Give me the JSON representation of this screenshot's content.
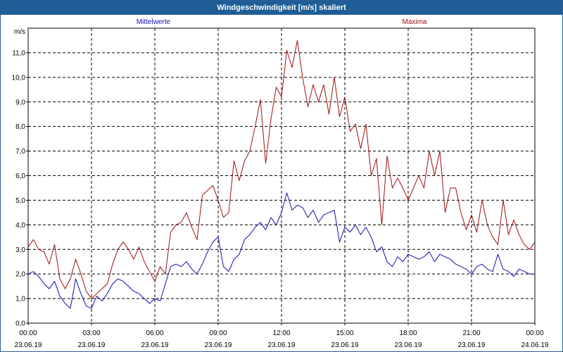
{
  "window": {
    "title": "Windgeschwindigkeit [m/s] skaliert"
  },
  "chart_data": {
    "type": "line",
    "title": "Windgeschwindigkeit [m/s] skaliert",
    "ylabel": "m/s",
    "xlabel": "",
    "ylim": [
      0,
      12
    ],
    "yticks": [
      "0,0",
      "1,0",
      "2,0",
      "3,0",
      "4,0",
      "5,0",
      "6,0",
      "7,0",
      "8,0",
      "9,0",
      "10,0",
      "11,0"
    ],
    "xlim_hours": [
      0,
      24
    ],
    "xticks": [
      {
        "time": "00:00",
        "date": "23.06.19"
      },
      {
        "time": "03:00",
        "date": "23.06.19"
      },
      {
        "time": "06:00",
        "date": "23.06.19"
      },
      {
        "time": "09:00",
        "date": "23.06.19"
      },
      {
        "time": "12:00",
        "date": "23.06.19"
      },
      {
        "time": "15:00",
        "date": "23.06.19"
      },
      {
        "time": "18:00",
        "date": "23.06.19"
      },
      {
        "time": "21:00",
        "date": "23.06.19"
      },
      {
        "time": "00:00",
        "date": "24.06.19"
      }
    ],
    "grid": true,
    "colors": {
      "mittelwerte": "#1010b0",
      "maxima": "#a01010"
    },
    "series": [
      {
        "name": "Mittelwerte",
        "color": "#1010b0",
        "x": [
          0,
          0.25,
          0.5,
          0.75,
          1,
          1.25,
          1.5,
          1.75,
          2,
          2.25,
          2.5,
          2.75,
          3,
          3.25,
          3.5,
          3.75,
          4,
          4.25,
          4.5,
          4.75,
          5,
          5.25,
          5.5,
          5.75,
          6,
          6.25,
          6.5,
          6.75,
          7,
          7.25,
          7.5,
          7.75,
          8,
          8.25,
          8.5,
          8.75,
          9,
          9.25,
          9.5,
          9.75,
          10,
          10.25,
          10.5,
          10.75,
          11,
          11.25,
          11.5,
          11.75,
          12,
          12.25,
          12.5,
          12.75,
          13,
          13.25,
          13.5,
          13.75,
          14,
          14.25,
          14.5,
          14.75,
          15,
          15.25,
          15.5,
          15.75,
          16,
          16.25,
          16.5,
          16.75,
          17,
          17.25,
          17.5,
          17.75,
          18,
          18.25,
          18.5,
          18.75,
          19,
          19.25,
          19.5,
          19.75,
          20,
          20.25,
          20.5,
          20.75,
          21,
          21.25,
          21.5,
          21.75,
          22,
          22.25,
          22.5,
          22.75,
          23,
          23.25,
          23.5,
          23.75,
          24
        ],
        "values": [
          2.0,
          2.1,
          1.9,
          1.6,
          1.4,
          1.7,
          1.1,
          0.8,
          0.6,
          1.8,
          1.2,
          0.7,
          0.6,
          1.1,
          0.9,
          1.2,
          1.6,
          1.8,
          1.7,
          1.5,
          1.3,
          1.2,
          1.0,
          0.8,
          1.0,
          0.9,
          1.6,
          2.3,
          2.4,
          2.3,
          2.5,
          2.2,
          2.0,
          2.4,
          2.9,
          3.3,
          3.5,
          2.3,
          2.1,
          2.6,
          2.8,
          3.4,
          3.6,
          3.9,
          4.1,
          3.8,
          4.3,
          4.0,
          4.5,
          5.3,
          4.6,
          4.8,
          4.7,
          4.3,
          4.6,
          4.1,
          4.4,
          4.5,
          4.6,
          3.3,
          3.9,
          3.7,
          4.0,
          3.6,
          3.9,
          3.5,
          2.9,
          3.1,
          2.5,
          2.3,
          2.7,
          2.5,
          2.8,
          2.7,
          2.6,
          2.7,
          2.9,
          2.5,
          2.8,
          2.7,
          2.6,
          2.4,
          2.3,
          2.2,
          2.0,
          2.3,
          2.4,
          2.2,
          2.1,
          2.8,
          2.2,
          2.1,
          1.9,
          2.2,
          2.1,
          2.0,
          2.0
        ]
      },
      {
        "name": "Maxima",
        "color": "#a01010",
        "x": [
          0,
          0.25,
          0.5,
          0.75,
          1,
          1.25,
          1.5,
          1.75,
          2,
          2.25,
          2.5,
          2.75,
          3,
          3.25,
          3.5,
          3.75,
          4,
          4.25,
          4.5,
          4.75,
          5,
          5.25,
          5.5,
          5.75,
          6,
          6.25,
          6.5,
          6.75,
          7,
          7.25,
          7.5,
          7.75,
          8,
          8.25,
          8.5,
          8.75,
          9,
          9.25,
          9.5,
          9.75,
          10,
          10.25,
          10.5,
          10.75,
          11,
          11.25,
          11.5,
          11.75,
          12,
          12.25,
          12.5,
          12.75,
          13,
          13.25,
          13.5,
          13.75,
          14,
          14.25,
          14.5,
          14.75,
          15,
          15.25,
          15.5,
          15.75,
          16,
          16.25,
          16.5,
          16.75,
          17,
          17.25,
          17.5,
          17.75,
          18,
          18.25,
          18.5,
          18.75,
          19,
          19.25,
          19.5,
          19.75,
          20,
          20.25,
          20.5,
          20.75,
          21,
          21.25,
          21.5,
          21.75,
          22,
          22.25,
          22.5,
          22.75,
          23,
          23.25,
          23.5,
          23.75,
          24
        ],
        "values": [
          3.1,
          3.4,
          3.0,
          2.9,
          2.4,
          3.2,
          1.8,
          1.4,
          1.8,
          2.6,
          2.0,
          1.3,
          1.0,
          1.2,
          1.4,
          1.6,
          2.4,
          3.0,
          3.3,
          3.0,
          2.6,
          3.1,
          2.5,
          2.1,
          1.7,
          2.3,
          2.0,
          3.7,
          4.0,
          4.1,
          4.5,
          3.9,
          3.4,
          5.2,
          5.4,
          5.6,
          5.0,
          4.3,
          4.5,
          6.6,
          5.8,
          6.6,
          7.0,
          8.0,
          9.1,
          6.5,
          8.3,
          9.6,
          9.2,
          11.1,
          10.4,
          11.5,
          10.0,
          8.8,
          9.7,
          9.0,
          9.7,
          8.5,
          10.0,
          8.4,
          9.2,
          7.8,
          8.1,
          7.1,
          8.1,
          6.0,
          6.7,
          4.0,
          6.8,
          5.5,
          5.9,
          5.5,
          5.0,
          5.5,
          6.0,
          5.5,
          7.0,
          6.0,
          7.0,
          4.5,
          5.5,
          5.5,
          4.5,
          3.8,
          4.4,
          3.7,
          5.0,
          4.0,
          3.5,
          3.2,
          5.0,
          3.6,
          4.2,
          3.6,
          3.2,
          3.0,
          3.3
        ]
      }
    ]
  }
}
